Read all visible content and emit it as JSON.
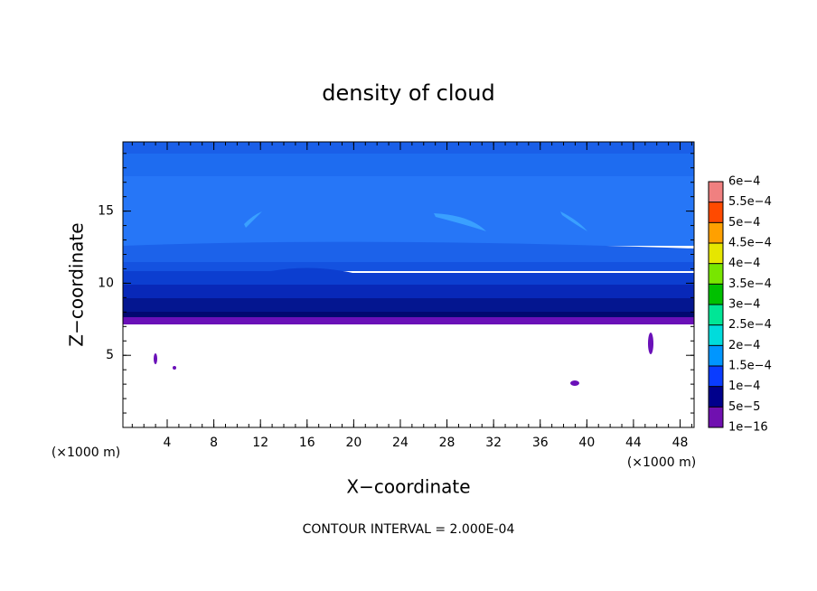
{
  "chart_data": {
    "type": "contour",
    "title": "density of cloud",
    "xlabel": "X−coordinate",
    "ylabel": "Z−coordinate",
    "x_unit": "(×1000 m)",
    "y_unit": "(×1000 m)",
    "footnote": "CONTOUR INTERVAL = 2.000E-04",
    "xlim": [
      0.2,
      49.2
    ],
    "ylim": [
      0,
      19.8
    ],
    "xticks": [
      4,
      8,
      12,
      16,
      20,
      24,
      28,
      32,
      36,
      40,
      44,
      48
    ],
    "yticks": [
      5,
      10,
      15
    ],
    "colorbar": {
      "levels": [
        {
          "value": 1e-16,
          "label": "1e−16"
        },
        {
          "value": 5e-05,
          "label": "5e−5"
        },
        {
          "value": 0.0001,
          "label": "1e−4"
        },
        {
          "value": 0.00015,
          "label": "1.5e−4"
        },
        {
          "value": 0.0002,
          "label": "2e−4"
        },
        {
          "value": 0.00025,
          "label": "2.5e−4"
        },
        {
          "value": 0.0003,
          "label": "3e−4"
        },
        {
          "value": 0.00035,
          "label": "3.5e−4"
        },
        {
          "value": 0.0004,
          "label": "4e−4"
        },
        {
          "value": 0.00045,
          "label": "4.5e−4"
        },
        {
          "value": 0.0005,
          "label": "5e−4"
        },
        {
          "value": 0.00055,
          "label": "5.5e−4"
        },
        {
          "value": 0.0006,
          "label": "6e−4"
        }
      ],
      "colors": [
        "#7010b0",
        "#00008c",
        "#0a3cff",
        "#0096ff",
        "#00dcdc",
        "#00e696",
        "#00c000",
        "#78e600",
        "#e6e600",
        "#ffa000",
        "#ff4a00",
        "#f08080"
      ]
    }
  }
}
